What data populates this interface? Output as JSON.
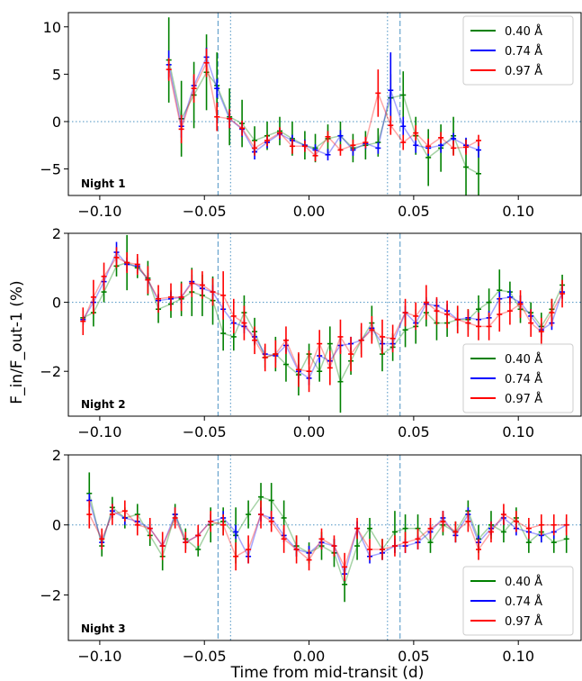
{
  "figure": {
    "ylabel": "F_in/F_out-1 (%)",
    "xlabel": "Time from mid-transit (d)"
  },
  "colors": {
    "w040": "#008000",
    "w074": "#0000ff",
    "w097": "#ff0000",
    "ref": "#1f77b4"
  },
  "chart_data": [
    {
      "type": "line",
      "title": "Night 1",
      "xlim": [
        -0.115,
        0.13
      ],
      "ylim": [
        -7.8,
        11.5
      ],
      "xticks": [
        -0.1,
        -0.05,
        0.0,
        0.05,
        0.1
      ],
      "xtick_labels": [
        "−0.10",
        "−0.05",
        "0.00",
        "0.05",
        "0.10"
      ],
      "yticks": [
        10,
        5,
        0,
        -5
      ],
      "ytick_labels": [
        "10",
        "5",
        "0",
        "−5"
      ],
      "vlines_dashed": [
        -0.0435,
        0.0435
      ],
      "vlines_dotted": [
        -0.0375,
        0.0375
      ],
      "hline": 0,
      "legend": {
        "position": "top-right",
        "entries": [
          "0.40 Å",
          "0.74 Å",
          "0.97 Å"
        ]
      },
      "x": [
        -0.067,
        -0.061,
        -0.055,
        -0.049,
        -0.044,
        -0.038,
        -0.032,
        -0.026,
        -0.02,
        -0.014,
        -0.008,
        -0.002,
        0.003,
        0.009,
        0.015,
        0.021,
        0.027,
        0.033,
        0.039,
        0.045,
        0.051,
        0.057,
        0.063,
        0.069,
        0.075,
        0.081
      ],
      "series": [
        {
          "name": "0.40 Å",
          "color_key": "w040",
          "values": [
            6.5,
            0.3,
            2.8,
            5.2,
            3.8,
            0.5,
            -0.2,
            -2.0,
            -1.5,
            -1.0,
            -1.8,
            -2.5,
            -2.8,
            -1.8,
            -1.5,
            -2.8,
            -2.5,
            -2.2,
            2.5,
            2.8,
            -1.5,
            -3.8,
            -2.8,
            -1.5,
            -4.8,
            -5.5
          ],
          "errors": [
            4.5,
            4.0,
            3.5,
            4.0,
            3.5,
            3.0,
            2.5,
            1.5,
            1.5,
            1.5,
            1.8,
            1.5,
            1.5,
            1.5,
            1.5,
            1.5,
            1.5,
            1.5,
            2.5,
            2.5,
            2.0,
            3.0,
            2.5,
            2.0,
            3.0,
            2.5
          ]
        },
        {
          "name": "0.74 Å",
          "color_key": "w074",
          "values": [
            6.0,
            -0.5,
            3.8,
            6.8,
            3.5,
            0.3,
            -0.8,
            -3.2,
            -2.2,
            -1.3,
            -2.0,
            -2.5,
            -3.0,
            -3.5,
            -1.5,
            -3.0,
            -2.3,
            -2.8,
            3.3,
            -0.5,
            -2.5,
            -2.8,
            -2.5,
            -1.8,
            -2.5,
            -3.0
          ],
          "errors": [
            1.5,
            1.2,
            1.0,
            1.0,
            1.0,
            1.0,
            0.8,
            0.8,
            0.6,
            0.6,
            0.6,
            0.6,
            0.6,
            0.6,
            0.6,
            0.6,
            0.6,
            0.6,
            4.0,
            1.0,
            0.8,
            0.8,
            0.8,
            0.6,
            0.8,
            0.8
          ]
        },
        {
          "name": "0.97 Å",
          "color_key": "w097",
          "values": [
            5.5,
            -0.8,
            3.5,
            6.2,
            0.5,
            0.3,
            -0.7,
            -2.8,
            -2.0,
            -1.2,
            -2.6,
            -2.6,
            -3.6,
            -1.6,
            -3.0,
            -2.5,
            -2.2,
            3.0,
            -0.4,
            -2.2,
            -1.2,
            -2.6,
            -1.7,
            -2.8,
            -2.7,
            -2.0
          ],
          "errors": [
            1.2,
            1.5,
            1.5,
            1.5,
            1.5,
            1.0,
            0.8,
            0.8,
            0.6,
            0.6,
            0.8,
            0.6,
            0.6,
            0.6,
            0.6,
            0.6,
            0.6,
            2.5,
            1.0,
            0.8,
            0.8,
            0.8,
            0.6,
            0.8,
            0.8,
            0.6
          ]
        }
      ]
    },
    {
      "type": "line",
      "title": "Night 2",
      "xlim": [
        -0.115,
        0.13
      ],
      "ylim": [
        -3.3,
        2.0
      ],
      "xticks": [
        -0.1,
        -0.05,
        0.0,
        0.05,
        0.1
      ],
      "xtick_labels": [
        "−0.10",
        "−0.05",
        "0.00",
        "0.05",
        "0.10"
      ],
      "yticks": [
        2,
        0,
        -2
      ],
      "ytick_labels": [
        "2",
        "0",
        "−2"
      ],
      "vlines_dashed": [
        -0.0435,
        0.0435
      ],
      "vlines_dotted": [
        -0.0375,
        0.0375
      ],
      "hline": 0,
      "legend": {
        "position": "bottom-right",
        "entries": [
          "0.40 Å",
          "0.74 Å",
          "0.97 Å"
        ]
      },
      "x": [
        -0.108,
        -0.103,
        -0.098,
        -0.092,
        -0.087,
        -0.082,
        -0.077,
        -0.072,
        -0.066,
        -0.061,
        -0.056,
        -0.051,
        -0.046,
        -0.041,
        -0.036,
        -0.031,
        -0.026,
        -0.021,
        -0.016,
        -0.011,
        -0.005,
        0.0,
        0.005,
        0.01,
        0.015,
        0.02,
        0.025,
        0.03,
        0.035,
        0.04,
        0.046,
        0.051,
        0.056,
        0.061,
        0.066,
        0.071,
        0.076,
        0.081,
        0.086,
        0.091,
        0.096,
        0.101,
        0.106,
        0.111,
        0.116,
        0.121
      ],
      "series": [
        {
          "name": "0.40 Å",
          "color_key": "w040",
          "values": [
            -0.45,
            -0.3,
            0.3,
            1.05,
            1.15,
            1.0,
            0.7,
            -0.2,
            -0.05,
            0.1,
            0.3,
            0.2,
            0.05,
            -0.9,
            -1.0,
            -0.3,
            -0.85,
            -1.6,
            -1.5,
            -1.8,
            -2.1,
            -1.5,
            -2.0,
            -1.2,
            -2.3,
            -1.7,
            -1.1,
            -0.6,
            -1.5,
            -1.3,
            -0.8,
            -0.7,
            -0.3,
            -0.6,
            -0.6,
            -0.5,
            -0.5,
            -0.2,
            0.0,
            0.35,
            0.3,
            -0.2,
            -0.3,
            -0.7,
            -0.2,
            0.5
          ],
          "errors": [
            0.2,
            0.4,
            0.3,
            0.3,
            0.8,
            0.3,
            0.5,
            0.4,
            0.4,
            0.5,
            0.7,
            0.6,
            0.7,
            0.5,
            0.4,
            0.5,
            0.4,
            0.3,
            0.5,
            0.5,
            0.6,
            0.3,
            0.3,
            0.5,
            0.9,
            0.4,
            0.4,
            0.5,
            0.5,
            0.4,
            0.5,
            0.5,
            0.4,
            0.5,
            0.4,
            0.4,
            0.3,
            0.4,
            0.4,
            0.6,
            0.3,
            0.4,
            0.3,
            0.4,
            0.3,
            0.3
          ]
        },
        {
          "name": "0.74 Å",
          "color_key": "w074",
          "values": [
            -0.5,
            0.0,
            0.6,
            1.45,
            1.1,
            1.05,
            0.65,
            0.05,
            0.1,
            0.15,
            0.6,
            0.4,
            0.3,
            -0.2,
            -0.6,
            -0.7,
            -1.0,
            -1.5,
            -1.55,
            -1.25,
            -2.0,
            -2.2,
            -1.55,
            -1.7,
            -1.25,
            -1.2,
            -1.1,
            -0.75,
            -1.2,
            -1.2,
            -0.3,
            -0.6,
            -0.05,
            -0.1,
            -0.25,
            -0.5,
            -0.45,
            -0.5,
            -0.45,
            0.1,
            0.15,
            0.0,
            -0.4,
            -0.8,
            -0.6,
            0.3
          ],
          "errors": [
            0.15,
            0.2,
            0.2,
            0.3,
            0.2,
            0.2,
            0.2,
            0.2,
            0.2,
            0.2,
            0.2,
            0.2,
            0.2,
            0.2,
            0.2,
            0.2,
            0.2,
            0.2,
            0.2,
            0.2,
            0.2,
            0.2,
            0.2,
            0.2,
            0.2,
            0.2,
            0.2,
            0.2,
            0.2,
            0.2,
            0.2,
            0.2,
            0.2,
            0.2,
            0.2,
            0.2,
            0.2,
            0.2,
            0.2,
            0.2,
            0.2,
            0.2,
            0.2,
            0.2,
            0.2,
            0.2
          ]
        },
        {
          "name": "0.97 Å",
          "color_key": "w097",
          "values": [
            -0.55,
            0.15,
            0.75,
            1.3,
            1.15,
            1.1,
            0.65,
            0.1,
            0.15,
            0.15,
            0.55,
            0.5,
            0.3,
            0.2,
            -0.4,
            -0.6,
            -1.1,
            -1.6,
            -1.5,
            -1.1,
            -1.95,
            -2.0,
            -1.2,
            -1.9,
            -1.0,
            -1.5,
            -1.1,
            -0.8,
            -1.0,
            -1.05,
            -0.3,
            -0.4,
            0.0,
            -0.25,
            -0.35,
            -0.5,
            -0.6,
            -0.7,
            -0.7,
            -0.35,
            -0.25,
            -0.05,
            -0.6,
            -0.85,
            -0.3,
            0.25
          ],
          "errors": [
            0.4,
            0.5,
            0.4,
            0.3,
            0.3,
            0.3,
            0.4,
            0.4,
            0.4,
            0.4,
            0.4,
            0.4,
            0.4,
            0.7,
            0.5,
            0.5,
            0.4,
            0.4,
            0.4,
            0.4,
            0.5,
            0.6,
            0.4,
            0.5,
            0.5,
            0.5,
            0.5,
            0.4,
            0.5,
            0.4,
            0.4,
            0.4,
            0.5,
            0.4,
            0.4,
            0.4,
            0.4,
            0.4,
            0.4,
            0.5,
            0.4,
            0.4,
            0.4,
            0.4,
            0.4,
            0.4
          ]
        }
      ]
    },
    {
      "type": "line",
      "title": "Night 3",
      "xlim": [
        -0.115,
        0.13
      ],
      "ylim": [
        -3.3,
        2.0
      ],
      "xticks": [
        -0.1,
        -0.05,
        0.0,
        0.05,
        0.1
      ],
      "xtick_labels": [
        "−0.10",
        "−0.05",
        "0.00",
        "0.05",
        "0.10"
      ],
      "yticks": [
        2,
        0,
        -2
      ],
      "ytick_labels": [
        "2",
        "0",
        "−2"
      ],
      "vlines_dashed": [
        -0.0435,
        0.0435
      ],
      "vlines_dotted": [
        -0.0375,
        0.0375
      ],
      "hline": 0,
      "legend": {
        "position": "bottom-right",
        "entries": [
          "0.40 Å",
          "0.74 Å",
          "0.97 Å"
        ]
      },
      "x": [
        -0.105,
        -0.099,
        -0.094,
        -0.088,
        -0.082,
        -0.076,
        -0.07,
        -0.064,
        -0.059,
        -0.053,
        -0.047,
        -0.041,
        -0.035,
        -0.029,
        -0.023,
        -0.018,
        -0.012,
        -0.006,
        0.0,
        0.006,
        0.012,
        0.017,
        0.023,
        0.029,
        0.035,
        0.041,
        0.046,
        0.052,
        0.058,
        0.064,
        0.07,
        0.076,
        0.081,
        0.087,
        0.093,
        0.099,
        0.105,
        0.111,
        0.117,
        0.123
      ],
      "series": [
        {
          "name": "0.40 Å",
          "color_key": "w040",
          "values": [
            0.9,
            -0.6,
            0.5,
            0.2,
            0.3,
            -0.3,
            -0.9,
            0.3,
            -0.4,
            -0.7,
            0.0,
            0.1,
            -0.3,
            0.3,
            0.8,
            0.7,
            0.2,
            -0.6,
            -0.8,
            -0.6,
            -0.8,
            -1.7,
            -0.6,
            -0.1,
            -0.7,
            -0.2,
            -0.1,
            -0.1,
            -0.5,
            0.0,
            -0.2,
            0.4,
            -0.4,
            0.0,
            -0.2,
            0.2,
            -0.5,
            -0.2,
            -0.5,
            -0.4
          ],
          "errors": [
            0.6,
            0.3,
            0.3,
            0.3,
            0.3,
            0.3,
            0.4,
            0.3,
            0.3,
            0.2,
            0.5,
            0.4,
            0.8,
            0.4,
            0.4,
            0.5,
            0.5,
            0.3,
            0.3,
            0.4,
            0.4,
            0.5,
            0.4,
            0.3,
            0.3,
            0.6,
            0.4,
            0.4,
            0.3,
            0.3,
            0.3,
            0.3,
            0.4,
            0.4,
            0.3,
            0.3,
            0.3,
            0.3,
            0.3,
            0.4
          ]
        },
        {
          "name": "0.74 Å",
          "color_key": "w074",
          "values": [
            0.7,
            -0.5,
            0.4,
            0.2,
            0.1,
            -0.1,
            -0.6,
            0.3,
            -0.5,
            -0.3,
            0.1,
            0.2,
            -0.2,
            -0.9,
            0.3,
            0.2,
            -0.3,
            -0.7,
            -0.8,
            -0.5,
            -0.6,
            -1.4,
            -0.1,
            -0.9,
            -0.8,
            -0.6,
            -0.6,
            -0.5,
            -0.2,
            0.2,
            -0.3,
            0.3,
            -0.5,
            -0.1,
            0.2,
            -0.1,
            -0.2,
            -0.3,
            -0.2,
            0.0
          ],
          "errors": [
            0.2,
            0.2,
            0.2,
            0.2,
            0.2,
            0.2,
            0.2,
            0.2,
            0.2,
            0.2,
            0.2,
            0.2,
            0.2,
            0.2,
            0.2,
            0.2,
            0.2,
            0.2,
            0.2,
            0.2,
            0.2,
            0.2,
            0.2,
            0.2,
            0.2,
            0.2,
            0.2,
            0.2,
            0.2,
            0.2,
            0.2,
            0.2,
            0.2,
            0.2,
            0.2,
            0.2,
            0.2,
            0.2,
            0.2,
            0.2
          ]
        },
        {
          "name": "0.97 Å",
          "color_key": "w097",
          "values": [
            0.3,
            -0.4,
            0.3,
            0.4,
            0.0,
            -0.1,
            -0.6,
            0.2,
            -0.5,
            -0.3,
            0.1,
            0.0,
            -0.9,
            -0.7,
            0.3,
            0.1,
            -0.4,
            -0.7,
            -1.0,
            -0.4,
            -0.6,
            -1.2,
            -0.1,
            -0.7,
            -0.7,
            -0.6,
            -0.5,
            -0.4,
            -0.1,
            0.1,
            -0.2,
            0.1,
            -0.7,
            -0.2,
            0.3,
            0.1,
            -0.1,
            0.0,
            0.0,
            0.0
          ],
          "errors": [
            0.4,
            0.3,
            0.3,
            0.3,
            0.3,
            0.3,
            0.4,
            0.3,
            0.3,
            0.3,
            0.3,
            0.3,
            0.4,
            0.4,
            0.4,
            0.3,
            0.4,
            0.4,
            0.3,
            0.3,
            0.3,
            0.4,
            0.3,
            0.3,
            0.3,
            0.3,
            0.3,
            0.3,
            0.3,
            0.3,
            0.3,
            0.3,
            0.3,
            0.3,
            0.3,
            0.3,
            0.3,
            0.3,
            0.3,
            0.3
          ]
        }
      ]
    }
  ]
}
